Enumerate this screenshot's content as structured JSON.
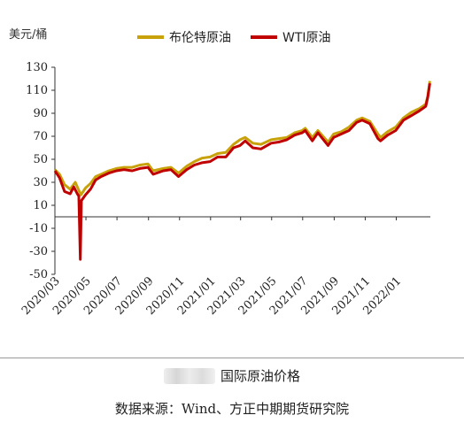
{
  "chart_data": {
    "type": "line",
    "unit_label": "美元/桶",
    "yticks": [
      130,
      110,
      90,
      70,
      50,
      30,
      10,
      -10,
      -30,
      -50
    ],
    "ylim": [
      -50,
      130
    ],
    "xticks": [
      "2020/03",
      "2020/05",
      "2020/07",
      "2020/09",
      "2020/11",
      "2021/01",
      "2021/03",
      "2021/05",
      "2021/07",
      "2021/09",
      "2021/11",
      "2022/01"
    ],
    "xlim": [
      "2020-03-01",
      "2022-03-09"
    ],
    "series": [
      {
        "name": "布伦特原油",
        "color": "#C8A20A",
        "points": [
          [
            "2020-03-01",
            41
          ],
          [
            "2020-03-10",
            37
          ],
          [
            "2020-03-20",
            28
          ],
          [
            "2020-03-31",
            24
          ],
          [
            "2020-04-10",
            30
          ],
          [
            "2020-04-21",
            19
          ],
          [
            "2020-04-30",
            25
          ],
          [
            "2020-05-10",
            29
          ],
          [
            "2020-05-20",
            35
          ],
          [
            "2020-05-31",
            37
          ],
          [
            "2020-06-15",
            40
          ],
          [
            "2020-06-30",
            42
          ],
          [
            "2020-07-15",
            43
          ],
          [
            "2020-07-31",
            43
          ],
          [
            "2020-08-15",
            45
          ],
          [
            "2020-08-31",
            46
          ],
          [
            "2020-09-10",
            40
          ],
          [
            "2020-09-30",
            42
          ],
          [
            "2020-10-15",
            43
          ],
          [
            "2020-10-30",
            38
          ],
          [
            "2020-11-15",
            44
          ],
          [
            "2020-11-30",
            48
          ],
          [
            "2020-12-15",
            51
          ],
          [
            "2020-12-31",
            52
          ],
          [
            "2021-01-15",
            55
          ],
          [
            "2021-01-31",
            56
          ],
          [
            "2021-02-15",
            63
          ],
          [
            "2021-02-28",
            67
          ],
          [
            "2021-03-10",
            69
          ],
          [
            "2021-03-25",
            64
          ],
          [
            "2021-04-10",
            63
          ],
          [
            "2021-04-30",
            67
          ],
          [
            "2021-05-15",
            68
          ],
          [
            "2021-05-31",
            69
          ],
          [
            "2021-06-15",
            73
          ],
          [
            "2021-06-30",
            75
          ],
          [
            "2021-07-06",
            77
          ],
          [
            "2021-07-20",
            69
          ],
          [
            "2021-07-31",
            75
          ],
          [
            "2021-08-20",
            65
          ],
          [
            "2021-08-31",
            72
          ],
          [
            "2021-09-15",
            74
          ],
          [
            "2021-09-30",
            78
          ],
          [
            "2021-10-15",
            84
          ],
          [
            "2021-10-26",
            86
          ],
          [
            "2021-11-10",
            83
          ],
          [
            "2021-11-26",
            72
          ],
          [
            "2021-12-01",
            69
          ],
          [
            "2021-12-15",
            74
          ],
          [
            "2021-12-31",
            78
          ],
          [
            "2022-01-15",
            86
          ],
          [
            "2022-01-31",
            91
          ],
          [
            "2022-02-15",
            94
          ],
          [
            "2022-02-28",
            98
          ],
          [
            "2022-03-04",
            105
          ],
          [
            "2022-03-08",
            118
          ]
        ]
      },
      {
        "name": "WTI原油",
        "color": "#C00000",
        "points": [
          [
            "2020-03-01",
            40
          ],
          [
            "2020-03-10",
            34
          ],
          [
            "2020-03-20",
            22
          ],
          [
            "2020-03-31",
            20
          ],
          [
            "2020-04-07",
            26
          ],
          [
            "2020-04-14",
            20
          ],
          [
            "2020-04-17",
            18
          ],
          [
            "2020-04-20",
            -37
          ],
          [
            "2020-04-22",
            14
          ],
          [
            "2020-04-30",
            19
          ],
          [
            "2020-05-10",
            24
          ],
          [
            "2020-05-20",
            32
          ],
          [
            "2020-05-31",
            35
          ],
          [
            "2020-06-15",
            38
          ],
          [
            "2020-06-30",
            40
          ],
          [
            "2020-07-15",
            41
          ],
          [
            "2020-07-31",
            40
          ],
          [
            "2020-08-15",
            42
          ],
          [
            "2020-08-31",
            43
          ],
          [
            "2020-09-10",
            37
          ],
          [
            "2020-09-30",
            40
          ],
          [
            "2020-10-15",
            41
          ],
          [
            "2020-10-30",
            35
          ],
          [
            "2020-11-15",
            41
          ],
          [
            "2020-11-30",
            45
          ],
          [
            "2020-12-15",
            47
          ],
          [
            "2020-12-31",
            48
          ],
          [
            "2021-01-15",
            52
          ],
          [
            "2021-01-31",
            52
          ],
          [
            "2021-02-15",
            60
          ],
          [
            "2021-02-28",
            62
          ],
          [
            "2021-03-10",
            66
          ],
          [
            "2021-03-25",
            60
          ],
          [
            "2021-04-10",
            59
          ],
          [
            "2021-04-30",
            64
          ],
          [
            "2021-05-15",
            65
          ],
          [
            "2021-05-31",
            67
          ],
          [
            "2021-06-15",
            71
          ],
          [
            "2021-06-30",
            73
          ],
          [
            "2021-07-06",
            75
          ],
          [
            "2021-07-20",
            66
          ],
          [
            "2021-07-31",
            73
          ],
          [
            "2021-08-20",
            62
          ],
          [
            "2021-08-31",
            69
          ],
          [
            "2021-09-15",
            72
          ],
          [
            "2021-09-30",
            75
          ],
          [
            "2021-10-15",
            82
          ],
          [
            "2021-10-26",
            84
          ],
          [
            "2021-11-10",
            81
          ],
          [
            "2021-11-26",
            68
          ],
          [
            "2021-12-01",
            66
          ],
          [
            "2021-12-15",
            71
          ],
          [
            "2021-12-31",
            75
          ],
          [
            "2022-01-15",
            84
          ],
          [
            "2022-01-31",
            88
          ],
          [
            "2022-02-15",
            92
          ],
          [
            "2022-02-28",
            96
          ],
          [
            "2022-03-04",
            104
          ],
          [
            "2022-03-08",
            116
          ]
        ]
      }
    ]
  },
  "caption": "国际原油价格",
  "source": "数据来源：Wind、方正中期期货研究院"
}
